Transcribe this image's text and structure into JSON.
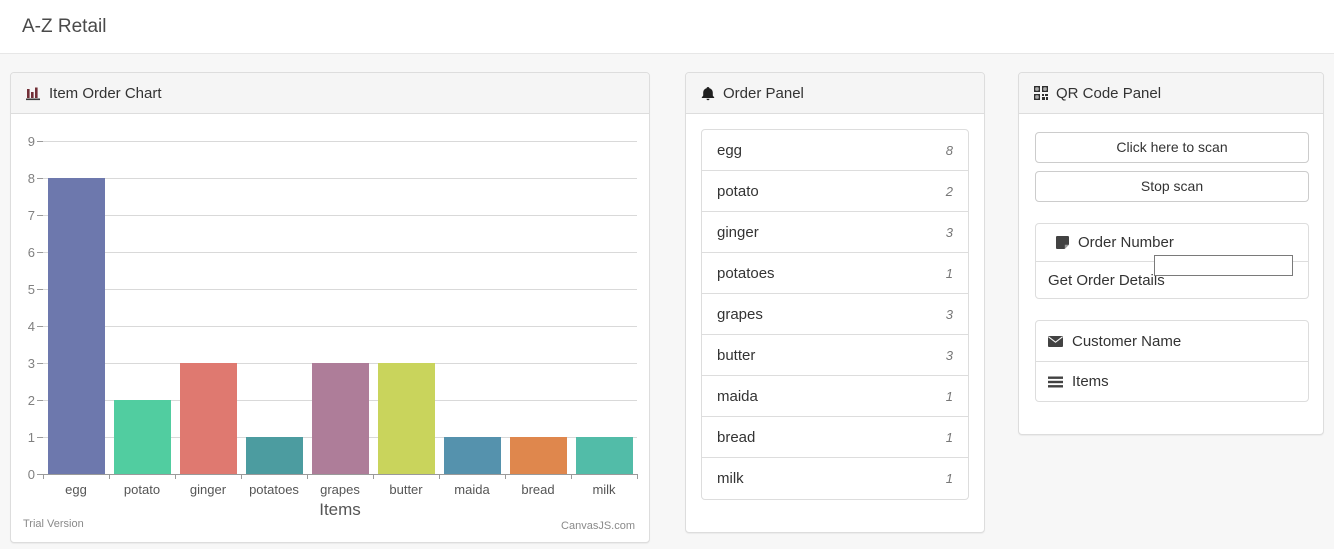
{
  "app": {
    "title": "A-Z Retail"
  },
  "chart_panel": {
    "title": "Item Order Chart",
    "trial_label": "Trial Version",
    "credit_label": "CanvasJS.com"
  },
  "chart_data": {
    "type": "bar",
    "title": "",
    "xlabel": "Items",
    "ylabel": "",
    "categories": [
      "egg",
      "potato",
      "ginger",
      "potatoes",
      "grapes",
      "butter",
      "maida",
      "bread",
      "milk"
    ],
    "values": [
      8,
      2,
      3,
      1,
      3,
      3,
      1,
      1,
      1
    ],
    "bar_colors": [
      "#6D78AD",
      "#51CDA0",
      "#DF7970",
      "#4C9CA0",
      "#AE7D99",
      "#C9D45C",
      "#5592AD",
      "#DF874D",
      "#52BCA8"
    ],
    "ylim": [
      0,
      9
    ],
    "ytick_step": 1,
    "grid": true,
    "legend": "none"
  },
  "order_panel": {
    "title": "Order Panel",
    "items": [
      {
        "name": "egg",
        "count": "8"
      },
      {
        "name": "potato",
        "count": "2"
      },
      {
        "name": "ginger",
        "count": "3"
      },
      {
        "name": "potatoes",
        "count": "1"
      },
      {
        "name": "grapes",
        "count": "3"
      },
      {
        "name": "butter",
        "count": "3"
      },
      {
        "name": "maida",
        "count": "1"
      },
      {
        "name": "bread",
        "count": "1"
      },
      {
        "name": "milk",
        "count": "1"
      }
    ]
  },
  "qr_panel": {
    "title": "QR Code Panel",
    "scan_button_label": "Click here to scan",
    "stop_button_label": "Stop scan",
    "order_number_label": "Order Number",
    "order_number_value": "",
    "get_order_details_label": "Get Order Details",
    "customer_name_label": "Customer Name",
    "items_label": "Items"
  },
  "colors": {
    "accent_chart_icon": "#722f37",
    "icon_dark": "#2e2e2e",
    "card_header_bg": "#f5f5f5",
    "page_bg": "#f7f7f7"
  }
}
